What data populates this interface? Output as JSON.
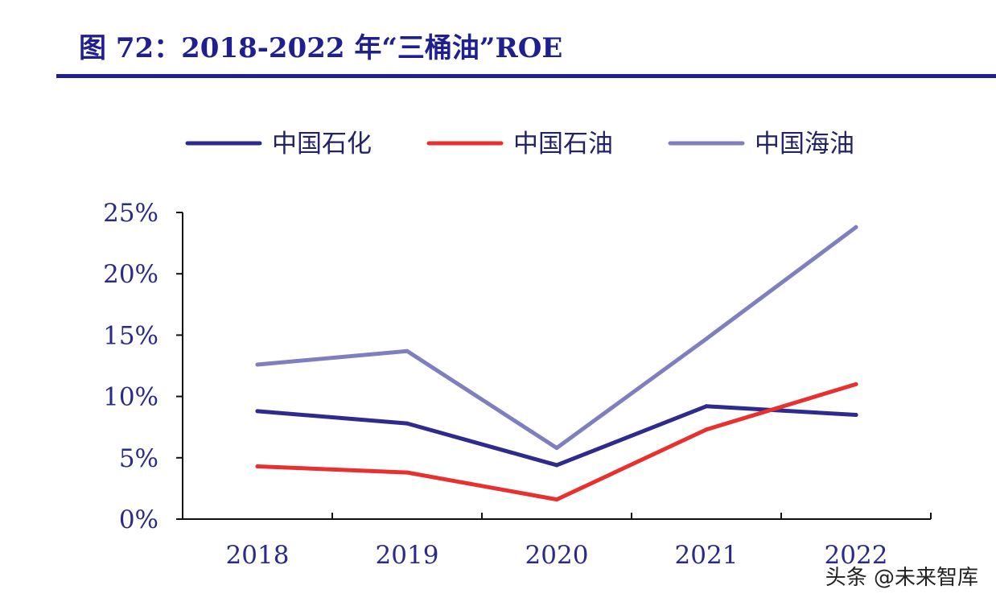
{
  "figure": {
    "title": "图 72：2018-2022 年“三桶油”ROE"
  },
  "watermark": "头条 @未来智库",
  "chart_data": {
    "type": "line",
    "categories": [
      "2018",
      "2019",
      "2020",
      "2021",
      "2022"
    ],
    "series": [
      {
        "name": "中国石化",
        "color": "#2e2a8e",
        "values": [
          8.8,
          7.8,
          4.4,
          9.2,
          8.5
        ]
      },
      {
        "name": "中国石油",
        "color": "#e8302e",
        "values": [
          4.3,
          3.8,
          1.6,
          7.3,
          11.0
        ]
      },
      {
        "name": "中国海油",
        "color": "#7f7fc0",
        "values": [
          12.6,
          13.7,
          5.8,
          14.7,
          23.8
        ]
      }
    ],
    "yticks": [
      "0%",
      "5%",
      "10%",
      "15%",
      "20%",
      "25%"
    ],
    "ylim": [
      0,
      25
    ],
    "xlabel": "",
    "ylabel": "",
    "grid": false,
    "legend_position": "top"
  }
}
